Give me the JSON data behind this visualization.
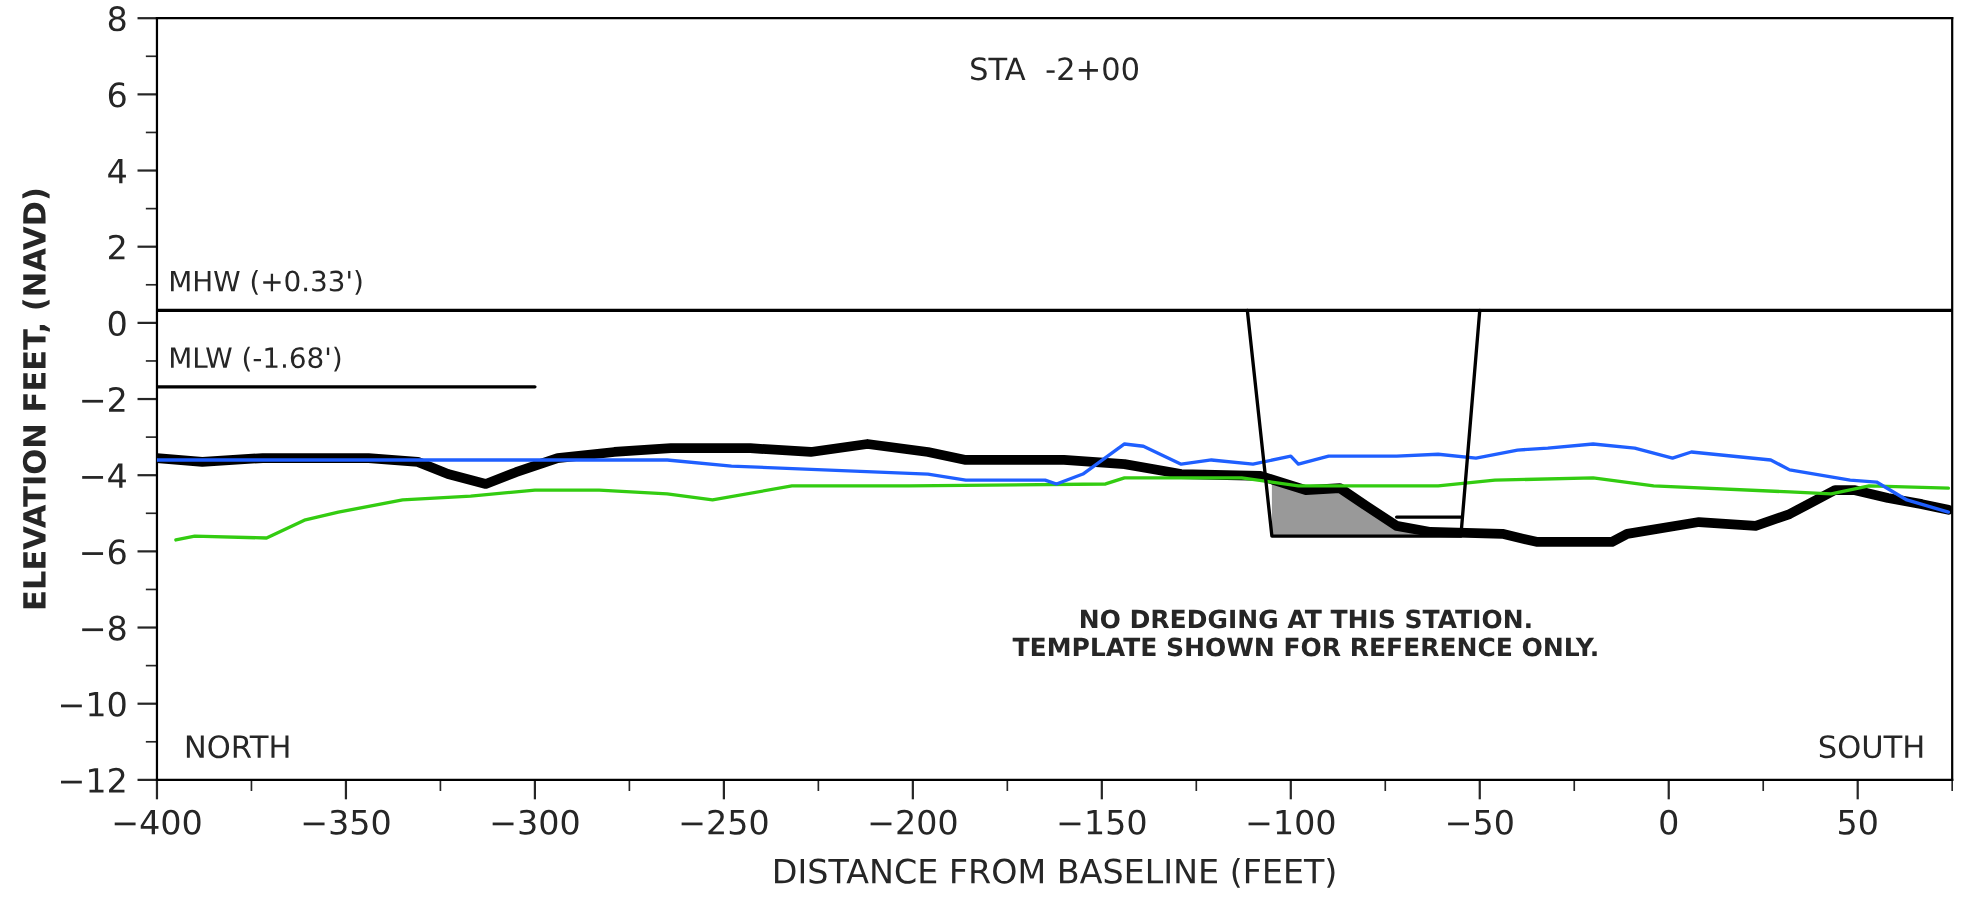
{
  "chart_data": {
    "type": "line",
    "title": "STA  -2+00",
    "xlabel": "DISTANCE FROM BASELINE (FEET)",
    "ylabel": "ELEVATION FEET, (NAVD)",
    "xlim": [
      -400,
      75
    ],
    "xticks": [
      -400,
      -350,
      -300,
      -250,
      -200,
      -150,
      -100,
      -50,
      0,
      50
    ],
    "ylim": [
      -12,
      8
    ],
    "yticks": [
      -12,
      -10,
      -8,
      -6,
      -4,
      -2,
      0,
      2,
      4,
      6,
      8
    ],
    "grid": false,
    "legend": false,
    "ref_lines": [
      {
        "axis": "y",
        "value": 0.33,
        "label": "MHW (+0.33')",
        "color": "#000000"
      }
    ],
    "annotations": [
      "NORTH",
      "SOUTH",
      "NO DREDGING AT THIS STATION.\nTEMPLATE SHOWN FOR REFERENCE ONLY."
    ],
    "series": [
      {
        "type": "line",
        "name": "MLW (-1.68')",
        "color": "#000000",
        "x": [
          -400,
          -300
        ],
        "values": [
          -1.68,
          -1.68
        ]
      },
      {
        "type": "area",
        "color": "#999999",
        "x": [
          -105,
          -96,
          -87,
          -80,
          -72,
          -63,
          -58,
          -105
        ],
        "values": [
          -4.02,
          -4.39,
          -4.34,
          -4.81,
          -5.33,
          -5.49,
          -5.6,
          -5.6
        ]
      },
      {
        "color": "#33cc11",
        "x": [
          -395,
          -390,
          -371,
          -361,
          -352,
          -335,
          -317,
          -300,
          -283,
          -265,
          -253,
          -232,
          -201,
          -149,
          -144,
          -113,
          -98,
          -61,
          -46,
          -20,
          -4,
          32,
          43,
          53,
          74
        ],
        "values": [
          -5.7,
          -5.6,
          -5.65,
          -5.18,
          -4.97,
          -4.65,
          -4.55,
          -4.39,
          -4.39,
          -4.49,
          -4.65,
          -4.28,
          -4.28,
          -4.23,
          -4.07,
          -4.07,
          -4.28,
          -4.28,
          -4.13,
          -4.07,
          -4.28,
          -4.44,
          -4.49,
          -4.28,
          -4.34
        ]
      },
      {
        "color": "#1f5fff",
        "x": [
          -400,
          -265,
          -248,
          -196,
          -186,
          -165,
          -162,
          -155,
          -144,
          -139,
          -129,
          -121,
          -110,
          -100,
          -98,
          -90,
          -72,
          -61,
          -51,
          -40,
          -32,
          -20,
          -9,
          1,
          6,
          27,
          32,
          48,
          55,
          63,
          74
        ],
        "values": [
          -3.6,
          -3.6,
          -3.76,
          -3.97,
          -4.13,
          -4.13,
          -4.23,
          -3.97,
          -3.18,
          -3.24,
          -3.71,
          -3.6,
          -3.71,
          -3.5,
          -3.71,
          -3.5,
          -3.5,
          -3.45,
          -3.55,
          -3.34,
          -3.29,
          -3.18,
          -3.29,
          -3.55,
          -3.39,
          -3.6,
          -3.86,
          -4.13,
          -4.18,
          -4.65,
          -4.97
        ]
      },
      {
        "color": "#000000",
        "x": [
          -400,
          -388,
          -372,
          -357,
          -344,
          -331,
          -323,
          -313,
          -305,
          -294,
          -279,
          -264,
          -243,
          -227,
          -212,
          -196,
          -186,
          -160,
          -144,
          -129,
          -108,
          -96,
          -87,
          -80,
          -72,
          -63,
          -44,
          -35,
          -15,
          -11,
          8,
          23,
          32,
          44,
          49,
          58,
          67,
          74
        ],
        "values": [
          -3.55,
          -3.65,
          -3.55,
          -3.55,
          -3.55,
          -3.65,
          -3.97,
          -4.23,
          -3.92,
          -3.55,
          -3.39,
          -3.29,
          -3.29,
          -3.39,
          -3.18,
          -3.39,
          -3.6,
          -3.6,
          -3.71,
          -3.97,
          -4.02,
          -4.39,
          -4.34,
          -4.81,
          -5.33,
          -5.49,
          -5.54,
          -5.75,
          -5.75,
          -5.54,
          -5.23,
          -5.33,
          -5.02,
          -4.39,
          -4.39,
          -4.6,
          -4.76,
          -4.91
        ]
      },
      {
        "type": "line",
        "color": "#000000",
        "x": [
          -111.5,
          -105,
          -55,
          -50
        ],
        "values": [
          0.33,
          -5.6,
          -5.6,
          0.33
        ]
      },
      {
        "type": "line",
        "color": "#000000",
        "x": [
          -72,
          -55
        ],
        "values": [
          -5.1,
          -5.1
        ]
      }
    ]
  }
}
